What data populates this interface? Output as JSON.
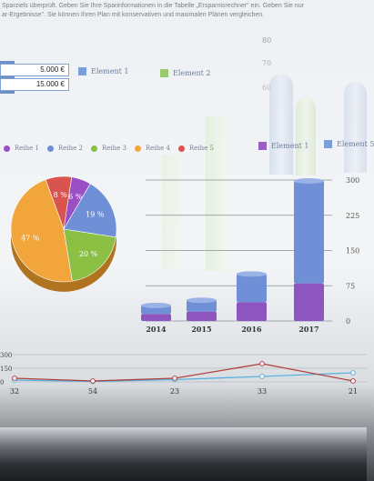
{
  "header": {
    "hint_line1": "Sparziels überprüft. Geben Sie Ihre Sparinformationen in die Tabelle „Ersparnisrechner\" ein. Geben Sie nur",
    "hint_line2": "ar-Ergebnisse\". Sie können Ihren Plan mit konservativen und maximalen Plänen vergleichen."
  },
  "table": {
    "value1": "5.000 €",
    "value2": "15.000 €"
  },
  "legend_top": [
    {
      "label": "Element 1",
      "color": "#7d9fd8"
    },
    {
      "label": "Element 2",
      "color": "#98c96a"
    }
  ],
  "legend_right": [
    {
      "label": "Element 1",
      "color": "#9a5fc4"
    },
    {
      "label": "Element 5",
      "color": "#7d9fd8"
    }
  ],
  "pie_legend": [
    {
      "label": "Reihe 1",
      "color": "#9b4fc4"
    },
    {
      "label": "Reihe 2",
      "color": "#6f8fd6"
    },
    {
      "label": "Reihe 3",
      "color": "#8bc045"
    },
    {
      "label": "Reihe 4",
      "color": "#f2a53a"
    },
    {
      "label": "Reihe 5",
      "color": "#d9534f"
    }
  ],
  "chart_data": [
    {
      "type": "pie",
      "labels": [
        "8 %",
        "6 %",
        "19 %",
        "20 %",
        "47 %"
      ],
      "values": [
        8,
        6,
        19,
        20,
        47
      ],
      "colors": [
        "#d9534f",
        "#9b4fc4",
        "#6f8fd6",
        "#8bc045",
        "#f2a53a"
      ]
    },
    {
      "type": "bar",
      "categories": [
        "2014",
        "2015",
        "2016",
        "2017"
      ],
      "series": [
        {
          "values": [
            15,
            20,
            40,
            80
          ],
          "color": "#8e55c0"
        },
        {
          "values": [
            18,
            24,
            60,
            218
          ],
          "color": "#6f8fd6"
        }
      ],
      "yticks": [
        "300",
        "225",
        "150",
        "75",
        "0"
      ],
      "ylim": [
        0,
        300
      ]
    },
    {
      "type": "line",
      "categories": [
        "32",
        "54",
        "23",
        "33",
        "21"
      ],
      "yticks": [
        "300",
        "150",
        "0"
      ],
      "series": [
        {
          "values": [
            20,
            5,
            25,
            60,
            100
          ],
          "color": "#5ab0e0"
        },
        {
          "values": [
            40,
            10,
            40,
            200,
            10
          ],
          "color": "#b0413e"
        }
      ],
      "ylim": [
        0,
        300
      ]
    }
  ],
  "bg_axis": [
    "80",
    "70",
    "60"
  ]
}
